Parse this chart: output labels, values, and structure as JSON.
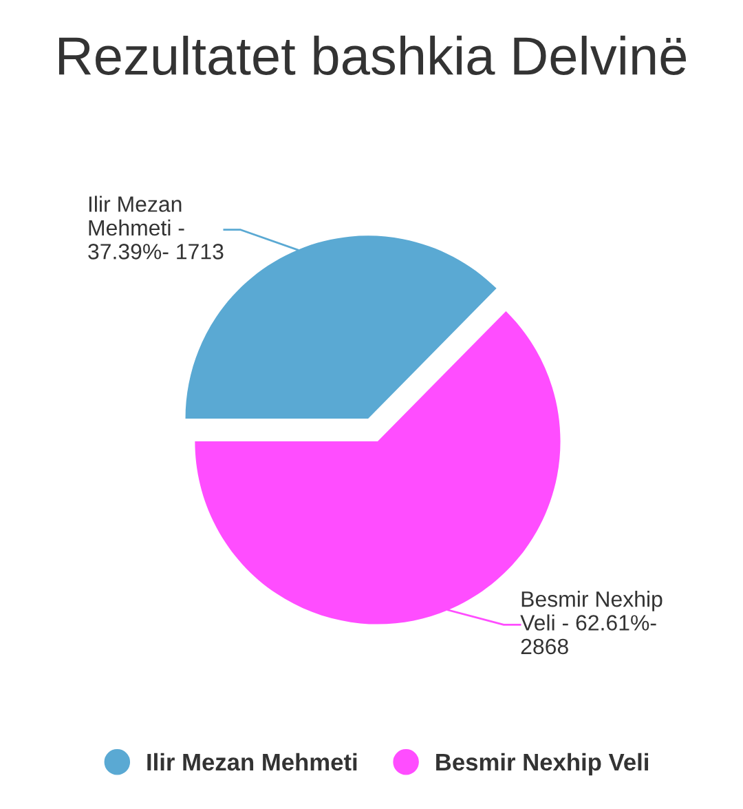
{
  "chart_data": {
    "type": "pie",
    "title": "Rezultatet bashkia Delvinë",
    "categories": [
      "Ilir Mezan Mehmeti",
      "Besmir Nexhip Veli"
    ],
    "values": [
      37.39,
      62.61
    ],
    "colors": [
      "#5aa9d3",
      "#ff4dff"
    ],
    "annotations": [
      "Ilir Mezan\nMehmeti -\n37.39%- 1713",
      "Besmir Nexhip\nVeli - 62.61%-\n2868"
    ],
    "legend": "bottom"
  }
}
